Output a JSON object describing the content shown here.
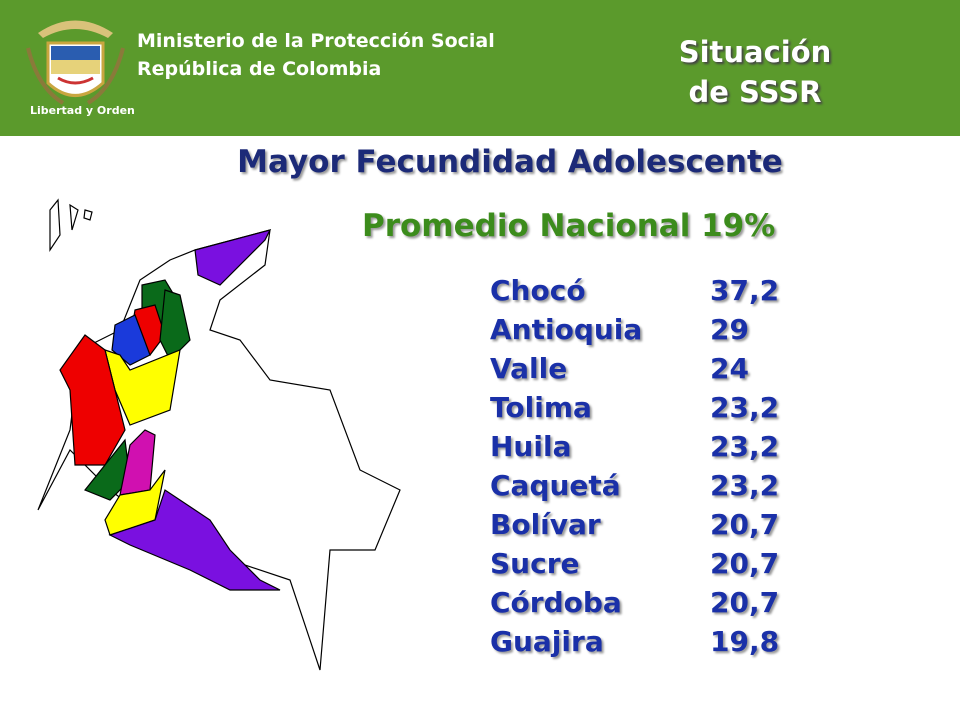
{
  "header": {
    "ministry": "Ministerio de la Protección Social",
    "country": "República de Colombia",
    "motto": "Libertad y Orden",
    "section": [
      "Situación",
      "de SSSR"
    ]
  },
  "title": "Mayor Fecundidad Adolescente",
  "subtitle": "Promedio Nacional 19%",
  "table": {
    "rows": [
      [
        "Chocó",
        "37,2"
      ],
      [
        "Antioquia",
        "29"
      ],
      [
        "Valle",
        "24"
      ],
      [
        "Tolima",
        "23,2"
      ],
      [
        "Huila",
        "23,2"
      ],
      [
        "Caquetá",
        "23,2"
      ],
      [
        "Bolívar",
        "20,7"
      ],
      [
        "Sucre",
        "20,7"
      ],
      [
        "Córdoba",
        "20,7"
      ],
      [
        "Guajira",
        "19,8"
      ]
    ]
  }
}
